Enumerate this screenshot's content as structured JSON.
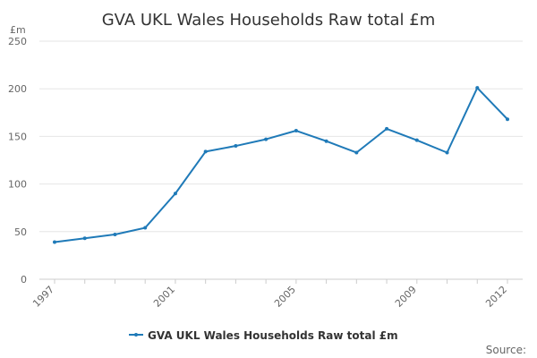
{
  "chart_data": {
    "type": "line",
    "title": "GVA UKL Wales Households Raw total £m",
    "ylabel": "£m",
    "xlabel": "",
    "ylim": [
      0,
      250
    ],
    "yticks": [
      0,
      50,
      100,
      150,
      200,
      250
    ],
    "x": [
      1997,
      1998,
      1999,
      2000,
      2001,
      2002,
      2003,
      2004,
      2005,
      2006,
      2007,
      2008,
      2009,
      2010,
      2011,
      2012
    ],
    "x_tick_labels": [
      "1997",
      "2001",
      "2005",
      "2009",
      "2012"
    ],
    "series": [
      {
        "name": "GVA UKL Wales Households Raw total £m",
        "values": [
          39,
          43,
          47,
          54,
          90,
          134,
          140,
          147,
          156,
          145,
          133,
          158,
          146,
          133,
          201,
          168
        ]
      }
    ],
    "grid": true,
    "legend": "bottom-center",
    "source_label": "Source:",
    "colors": {
      "series": "#1f7ab8",
      "grid": "#e6e6e6",
      "axis": "#cccccc",
      "text": "#666666",
      "title": "#333333"
    }
  }
}
